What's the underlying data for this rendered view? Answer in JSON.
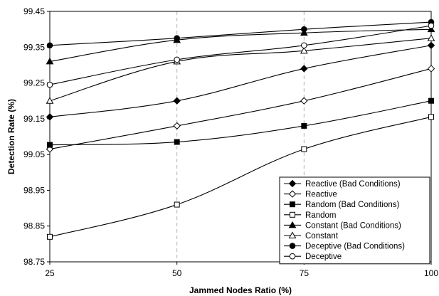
{
  "chart_data": {
    "type": "line",
    "title": "",
    "xlabel": "Jammed Nodes Ratio (%)",
    "ylabel": "Detection Rate (%)",
    "x": [
      25,
      50,
      75,
      100
    ],
    "x_ticks": [
      "25",
      "50",
      "75",
      "100"
    ],
    "y_ticks": [
      "98.75",
      "98.85",
      "98.95",
      "99.05",
      "99.15",
      "99.25",
      "99.35",
      "99.45"
    ],
    "xlim": [
      25,
      100
    ],
    "ylim": [
      98.75,
      99.45
    ],
    "grid": "vertical dashed",
    "legend_position": "bottom-right",
    "series": [
      {
        "name": "Reactive (Bad Conditions)",
        "marker": "diamond",
        "filled": true,
        "values": [
          99.155,
          99.2,
          99.29,
          99.355
        ]
      },
      {
        "name": "Reactive",
        "marker": "diamond",
        "filled": false,
        "values": [
          99.065,
          99.13,
          99.2,
          99.29
        ]
      },
      {
        "name": "Random (Bad Conditions)",
        "marker": "square",
        "filled": true,
        "values": [
          99.077,
          99.085,
          99.13,
          99.2
        ]
      },
      {
        "name": "Random",
        "marker": "square",
        "filled": false,
        "values": [
          98.82,
          98.91,
          99.065,
          99.155
        ]
      },
      {
        "name": "Constant (Bad Conditions)",
        "marker": "triangle",
        "filled": true,
        "values": [
          99.31,
          99.37,
          99.39,
          99.4
        ]
      },
      {
        "name": "Constant",
        "marker": "triangle",
        "filled": false,
        "values": [
          99.2,
          99.31,
          99.34,
          99.375
        ]
      },
      {
        "name": "Deceptive (Bad Conditions)",
        "marker": "circle",
        "filled": true,
        "values": [
          99.355,
          99.375,
          99.4,
          99.42
        ]
      },
      {
        "name": "Deceptive",
        "marker": "circle",
        "filled": false,
        "values": [
          99.245,
          99.315,
          99.355,
          99.41
        ]
      }
    ]
  }
}
